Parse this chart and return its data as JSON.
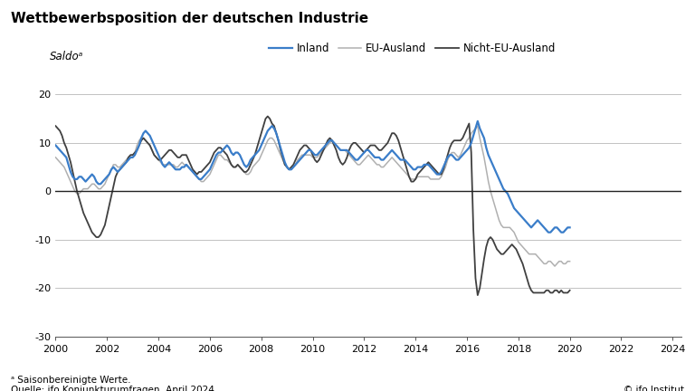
{
  "title": "Wettbewerbsposition der deutschen Industrie",
  "ylabel": "Saldoᵃ",
  "footnote": "ᵃ Saisonbereinigte Werte.",
  "source": "Quelle: ifo Konjunkturumfragen, April 2024.",
  "copyright": "© ifo Institut",
  "xlim": [
    2000.0,
    2024.33
  ],
  "ylim": [
    -30,
    25
  ],
  "yticks": [
    -30,
    -20,
    -10,
    0,
    10,
    20
  ],
  "xticks": [
    2000,
    2002,
    2004,
    2006,
    2008,
    2010,
    2012,
    2014,
    2016,
    2018,
    2020,
    2022,
    2024
  ],
  "legend_labels": [
    "Inland",
    "EU-Ausland",
    "Nicht-EU-Ausland"
  ],
  "colors": {
    "inland": "#3a7dc9",
    "eu": "#b0b0b0",
    "noneu": "#404040"
  },
  "inland": [
    9.5,
    9.0,
    8.5,
    8.0,
    7.5,
    7.0,
    5.5,
    4.0,
    3.0,
    2.5,
    2.5,
    3.0,
    3.0,
    2.5,
    2.0,
    2.5,
    3.0,
    3.5,
    3.0,
    2.0,
    1.5,
    1.5,
    2.0,
    2.5,
    3.0,
    3.5,
    4.5,
    5.0,
    4.5,
    4.0,
    4.5,
    5.0,
    5.5,
    6.0,
    6.5,
    7.0,
    7.0,
    7.5,
    8.5,
    9.5,
    11.0,
    12.0,
    12.5,
    12.0,
    11.5,
    10.5,
    9.5,
    8.5,
    7.5,
    6.5,
    5.5,
    5.0,
    5.5,
    6.0,
    5.5,
    5.0,
    4.5,
    4.5,
    4.5,
    5.0,
    5.0,
    5.5,
    5.0,
    4.5,
    4.0,
    3.5,
    3.0,
    2.5,
    2.5,
    3.0,
    3.5,
    4.0,
    4.5,
    5.5,
    6.5,
    7.5,
    8.0,
    8.0,
    8.5,
    9.0,
    9.5,
    9.0,
    8.0,
    7.5,
    8.0,
    8.0,
    7.5,
    6.5,
    5.5,
    5.0,
    5.5,
    6.5,
    7.0,
    7.5,
    8.0,
    8.5,
    9.5,
    10.5,
    11.5,
    12.5,
    13.0,
    13.5,
    13.0,
    12.0,
    10.5,
    9.0,
    7.5,
    6.0,
    5.0,
    4.5,
    4.5,
    5.0,
    5.5,
    6.0,
    6.5,
    7.0,
    7.5,
    8.0,
    8.5,
    8.5,
    8.0,
    7.5,
    7.5,
    8.0,
    8.5,
    9.0,
    9.5,
    10.0,
    10.5,
    10.5,
    10.0,
    9.5,
    9.0,
    8.5,
    8.5,
    8.5,
    8.5,
    8.0,
    7.5,
    7.0,
    6.5,
    6.5,
    7.0,
    7.5,
    8.0,
    8.5,
    8.5,
    8.0,
    7.5,
    7.0,
    7.0,
    7.0,
    6.5,
    6.5,
    7.0,
    7.5,
    8.0,
    8.5,
    8.0,
    7.5,
    7.0,
    6.5,
    6.5,
    6.5,
    6.0,
    5.5,
    5.0,
    4.5,
    4.5,
    5.0,
    5.0,
    5.0,
    5.5,
    5.5,
    5.5,
    5.0,
    4.5,
    4.0,
    3.5,
    3.5,
    4.0,
    5.0,
    6.0,
    7.0,
    7.5,
    7.5,
    7.0,
    6.5,
    6.5,
    7.0,
    7.5,
    8.0,
    8.5,
    9.0,
    10.0,
    11.5,
    13.0,
    14.5,
    13.0,
    12.0,
    11.0,
    9.0,
    7.5,
    6.5,
    5.5,
    4.5,
    3.5,
    2.5,
    1.5,
    0.5,
    0.0,
    -0.5,
    -1.5,
    -2.5,
    -3.5,
    -4.0,
    -4.5,
    -5.0,
    -5.5,
    -6.0,
    -6.5,
    -7.0,
    -7.5,
    -7.0,
    -6.5,
    -6.0,
    -6.5,
    -7.0,
    -7.5,
    -8.0,
    -8.5,
    -8.5,
    -8.0,
    -7.5,
    -7.5,
    -8.0,
    -8.5,
    -8.5,
    -8.0,
    -7.5,
    -7.5
  ],
  "eu": [
    7.0,
    6.5,
    6.0,
    5.5,
    5.0,
    4.0,
    3.0,
    2.0,
    1.0,
    0.0,
    -0.5,
    -0.5,
    0.0,
    0.5,
    0.5,
    0.5,
    1.0,
    1.5,
    1.5,
    1.0,
    0.5,
    0.5,
    1.0,
    1.5,
    2.5,
    3.5,
    4.5,
    5.5,
    5.5,
    5.0,
    5.0,
    5.5,
    6.0,
    6.5,
    7.0,
    7.5,
    7.5,
    8.0,
    9.5,
    10.5,
    11.0,
    11.0,
    10.5,
    10.0,
    9.5,
    8.5,
    7.5,
    7.0,
    6.5,
    6.0,
    5.5,
    5.5,
    5.5,
    5.5,
    5.5,
    5.5,
    5.0,
    5.0,
    5.5,
    6.0,
    5.5,
    5.5,
    5.0,
    4.5,
    4.0,
    3.5,
    3.0,
    2.5,
    2.0,
    2.0,
    2.5,
    3.0,
    3.5,
    4.5,
    5.5,
    6.5,
    7.5,
    7.5,
    7.0,
    6.5,
    6.5,
    6.0,
    5.5,
    5.0,
    5.0,
    5.5,
    5.0,
    4.5,
    4.0,
    3.5,
    3.5,
    4.0,
    5.0,
    5.5,
    6.0,
    6.5,
    7.5,
    8.5,
    9.5,
    10.5,
    11.0,
    11.0,
    10.5,
    9.5,
    8.5,
    7.5,
    6.5,
    5.5,
    5.0,
    4.5,
    4.5,
    5.0,
    5.5,
    6.5,
    7.0,
    7.5,
    7.5,
    7.5,
    7.5,
    7.5,
    7.0,
    7.0,
    7.0,
    7.5,
    8.0,
    8.5,
    9.0,
    9.5,
    10.0,
    10.5,
    10.0,
    9.5,
    9.0,
    8.5,
    8.5,
    8.5,
    8.0,
    7.5,
    7.0,
    6.5,
    6.0,
    5.5,
    5.5,
    6.0,
    6.5,
    7.0,
    7.5,
    7.0,
    6.5,
    6.0,
    5.5,
    5.5,
    5.0,
    5.0,
    5.5,
    6.0,
    6.5,
    7.0,
    6.5,
    6.0,
    5.5,
    5.0,
    4.5,
    4.0,
    3.5,
    3.0,
    2.5,
    2.5,
    2.5,
    3.0,
    3.0,
    3.0,
    3.0,
    3.0,
    3.0,
    2.5,
    2.5,
    2.5,
    2.5,
    2.5,
    3.0,
    4.0,
    5.0,
    6.5,
    7.5,
    8.0,
    8.0,
    7.5,
    7.0,
    7.5,
    8.5,
    9.5,
    10.5,
    11.0,
    12.0,
    12.5,
    13.0,
    13.5,
    11.0,
    9.0,
    7.0,
    4.5,
    2.0,
    0.0,
    -1.5,
    -3.0,
    -4.5,
    -6.0,
    -7.0,
    -7.5,
    -7.5,
    -7.5,
    -7.5,
    -8.0,
    -8.5,
    -9.5,
    -10.5,
    -11.0,
    -11.5,
    -12.0,
    -12.5,
    -13.0,
    -13.0,
    -13.0,
    -13.0,
    -13.5,
    -14.0,
    -14.5,
    -15.0,
    -15.0,
    -14.5,
    -14.5,
    -15.0,
    -15.5,
    -15.0,
    -14.5,
    -14.5,
    -15.0,
    -15.0,
    -14.5,
    -14.5
  ],
  "noneu": [
    13.5,
    13.0,
    12.5,
    11.5,
    10.0,
    9.0,
    7.5,
    6.0,
    4.0,
    2.0,
    0.0,
    -1.5,
    -3.0,
    -4.5,
    -5.5,
    -6.5,
    -7.5,
    -8.5,
    -9.0,
    -9.5,
    -9.5,
    -9.0,
    -8.0,
    -7.0,
    -5.0,
    -3.0,
    -1.0,
    1.0,
    3.0,
    4.0,
    4.5,
    5.0,
    5.5,
    6.0,
    7.0,
    7.5,
    7.5,
    8.0,
    8.5,
    9.5,
    10.5,
    11.0,
    10.5,
    10.0,
    9.5,
    8.5,
    7.5,
    7.0,
    6.5,
    6.5,
    7.0,
    7.5,
    8.0,
    8.5,
    8.5,
    8.0,
    7.5,
    7.0,
    7.0,
    7.5,
    7.5,
    7.5,
    6.5,
    5.5,
    4.5,
    4.0,
    3.5,
    4.0,
    4.0,
    4.5,
    5.0,
    5.5,
    6.0,
    7.0,
    8.0,
    8.5,
    9.0,
    9.0,
    8.5,
    8.0,
    7.5,
    6.5,
    5.5,
    5.0,
    5.0,
    5.5,
    5.0,
    4.5,
    4.0,
    4.0,
    4.5,
    5.5,
    6.5,
    7.5,
    9.0,
    10.5,
    12.0,
    13.5,
    15.0,
    15.5,
    15.0,
    14.0,
    13.5,
    12.0,
    10.5,
    8.5,
    7.0,
    5.5,
    5.0,
    4.5,
    5.0,
    5.5,
    6.5,
    7.5,
    8.5,
    9.0,
    9.5,
    9.5,
    9.0,
    8.5,
    7.5,
    6.5,
    6.0,
    6.5,
    7.5,
    8.5,
    9.5,
    10.5,
    11.0,
    10.5,
    9.5,
    8.5,
    7.0,
    6.0,
    5.5,
    6.0,
    7.0,
    8.5,
    9.5,
    10.0,
    10.0,
    9.5,
    9.0,
    8.5,
    8.0,
    8.5,
    9.0,
    9.5,
    9.5,
    9.5,
    9.0,
    8.5,
    8.5,
    9.0,
    9.5,
    10.0,
    11.0,
    12.0,
    12.0,
    11.5,
    10.5,
    9.0,
    7.5,
    6.0,
    4.5,
    3.0,
    2.0,
    2.0,
    2.5,
    3.5,
    4.0,
    4.5,
    5.0,
    5.5,
    6.0,
    5.5,
    5.0,
    4.5,
    4.0,
    3.5,
    3.5,
    4.5,
    6.0,
    7.5,
    9.0,
    10.0,
    10.5,
    10.5,
    10.5,
    10.5,
    11.0,
    12.0,
    13.0,
    14.0,
    8.0,
    -8.0,
    -18.0,
    -21.5,
    -20.0,
    -17.0,
    -14.0,
    -11.5,
    -10.0,
    -9.5,
    -10.0,
    -11.0,
    -12.0,
    -12.5,
    -13.0,
    -13.0,
    -12.5,
    -12.0,
    -11.5,
    -11.0,
    -11.5,
    -12.0,
    -13.0,
    -14.0,
    -15.0,
    -16.5,
    -18.0,
    -19.5,
    -20.5,
    -21.0,
    -21.0,
    -21.0,
    -21.0,
    -21.0,
    -21.0,
    -20.5,
    -20.5,
    -21.0,
    -21.0,
    -20.5,
    -20.5,
    -21.0,
    -20.5,
    -21.0,
    -21.0,
    -21.0,
    -20.5
  ]
}
